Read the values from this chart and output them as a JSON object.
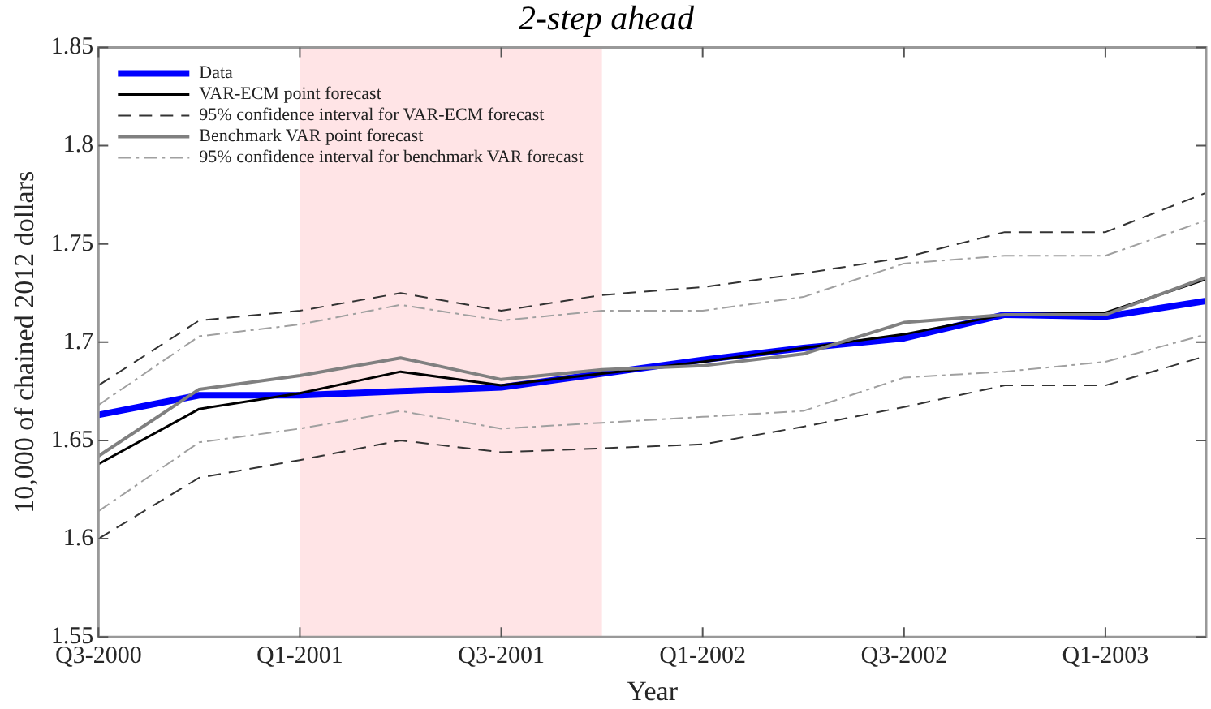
{
  "chart_data": {
    "type": "line",
    "title": "2-step ahead",
    "xlabel": "Year",
    "ylabel": "10,000 of chained 2012 dollars",
    "x": [
      "2000-07",
      "2000-10",
      "2001-01",
      "2001-04",
      "2001-07",
      "2001-10",
      "2002-01",
      "2002-04",
      "2002-07",
      "2002-10",
      "2003-01",
      "2003-04"
    ],
    "xlim": [
      "2000-07",
      "2003-04"
    ],
    "xticks": [
      {
        "value": "2000-07",
        "label": "Q3-2000"
      },
      {
        "value": "2001-01",
        "label": "Q1-2001"
      },
      {
        "value": "2001-07",
        "label": "Q3-2001"
      },
      {
        "value": "2002-01",
        "label": "Q1-2002"
      },
      {
        "value": "2002-07",
        "label": "Q3-2002"
      },
      {
        "value": "2003-01",
        "label": "Q1-2003"
      }
    ],
    "ylim": [
      1.55,
      1.85
    ],
    "yticks": [
      1.55,
      1.6,
      1.65,
      1.7,
      1.75,
      1.8,
      1.85
    ],
    "grid": false,
    "legend": "top left",
    "marker": "none",
    "bands": [
      {
        "axis": "x",
        "from": "2001-01",
        "to": "2001-10",
        "color": "#ffe4e6"
      }
    ],
    "series": [
      {
        "name": "Data",
        "color": "#0000ff",
        "line_style": "solid",
        "values": [
          1.663,
          1.673,
          1.673,
          1.675,
          1.677,
          1.684,
          1.691,
          1.697,
          1.702,
          1.714,
          1.713,
          1.721
        ]
      },
      {
        "name": "VAR-ECM point forecast",
        "color": "#000000",
        "line_style": "solid",
        "values": [
          1.638,
          1.666,
          1.674,
          1.685,
          1.678,
          1.684,
          1.69,
          1.697,
          1.704,
          1.714,
          1.715,
          1.732
        ]
      },
      {
        "name": "95% confidence interval for VAR-ECM forecast",
        "color": "#333333",
        "line_style": "dashed",
        "values": [
          1.678,
          1.711,
          1.716,
          1.725,
          1.716,
          1.724,
          1.728,
          1.735,
          1.743,
          1.756,
          1.756,
          1.776
        ]
      },
      {
        "color": "#333333",
        "line_style": "dashed",
        "values": [
          1.6,
          1.631,
          1.64,
          1.65,
          1.644,
          1.646,
          1.648,
          1.657,
          1.667,
          1.678,
          1.678,
          1.693
        ]
      },
      {
        "name": "Benchmark VAR point forecast",
        "color": "#808080",
        "line_style": "solid",
        "values": [
          1.642,
          1.676,
          1.683,
          1.692,
          1.681,
          1.686,
          1.688,
          1.694,
          1.71,
          1.714,
          1.714,
          1.733
        ]
      },
      {
        "name": "95% confidence interval for benchmark VAR forecast",
        "color": "#a0a0a0",
        "line_style": "dashdot",
        "values": [
          1.668,
          1.703,
          1.709,
          1.719,
          1.711,
          1.716,
          1.716,
          1.723,
          1.74,
          1.744,
          1.744,
          1.762
        ]
      },
      {
        "color": "#a0a0a0",
        "line_style": "dashdot",
        "values": [
          1.614,
          1.649,
          1.656,
          1.665,
          1.656,
          1.659,
          1.662,
          1.665,
          1.682,
          1.685,
          1.69,
          1.704
        ]
      }
    ]
  }
}
